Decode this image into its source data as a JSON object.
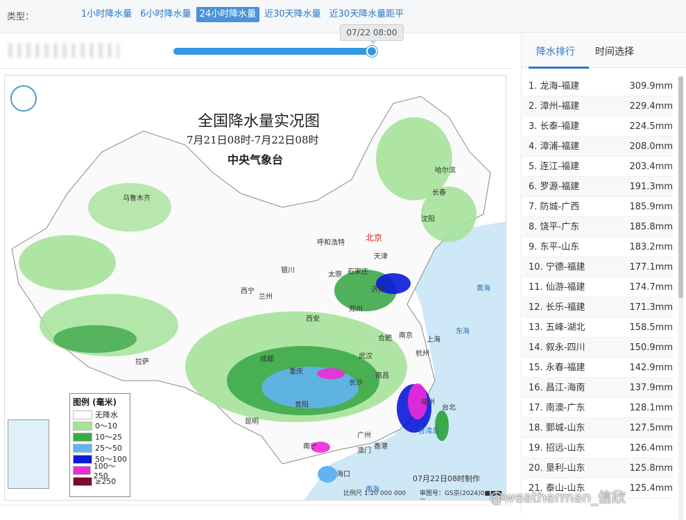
{
  "filter": {
    "label": "类型：",
    "tabs": [
      "1小时降水量",
      "6小时降水量",
      "24小时降水量",
      "近30天降水量",
      "近30天降水量距平"
    ],
    "active_index": 2
  },
  "timeline": {
    "tooltip": "07/22 08:00",
    "progress": 1.0
  },
  "map": {
    "title": "全国降水量实况图",
    "subtitle": "7月21日08时-7月22日08时",
    "organization": "中央气象台",
    "cities": [
      "乌鲁木齐",
      "哈尔滨",
      "长春",
      "沈阳",
      "北京",
      "天津",
      "呼和浩特",
      "石家庄",
      "太原",
      "银川",
      "西宁",
      "兰州",
      "郑州",
      "西安",
      "济南",
      "合肥",
      "南京",
      "上海",
      "杭州",
      "武汉",
      "成都",
      "重庆",
      "拉萨",
      "长沙",
      "南昌",
      "福州",
      "贵阳",
      "昆明",
      "南宁",
      "广州",
      "香港",
      "澳门",
      "台北",
      "海口"
    ],
    "seas": [
      "黄海",
      "东海",
      "南海",
      "台湾岛"
    ],
    "legend": {
      "title": "图例 (毫米)",
      "items": [
        {
          "label": "无降水",
          "color": "#ffffff"
        },
        {
          "label": "0～10",
          "color": "#a6e29a"
        },
        {
          "label": "10～25",
          "color": "#3da84a"
        },
        {
          "label": "25～50",
          "color": "#62b4f0"
        },
        {
          "label": "50～100",
          "color": "#0a1ad8"
        },
        {
          "label": "100～250",
          "color": "#f02ad8"
        },
        {
          "label": "≥250",
          "color": "#7a0a32"
        }
      ]
    },
    "made_at": "07月22日08时制作",
    "scale": "比例尺 1:20 000 000",
    "review": "审图号：GS京(2024)0■■■号"
  },
  "panel": {
    "tabs": [
      "降水排行",
      "时间选择"
    ],
    "active_tab": 0,
    "ranking": [
      {
        "rank": "1.",
        "place": "龙海-福建",
        "value": "309.9mm"
      },
      {
        "rank": "2.",
        "place": "漳州-福建",
        "value": "229.4mm"
      },
      {
        "rank": "3.",
        "place": "长泰-福建",
        "value": "224.5mm"
      },
      {
        "rank": "4.",
        "place": "漳浦-福建",
        "value": "208.0mm"
      },
      {
        "rank": "5.",
        "place": "连江-福建",
        "value": "203.4mm"
      },
      {
        "rank": "6.",
        "place": "罗源-福建",
        "value": "191.3mm"
      },
      {
        "rank": "7.",
        "place": "防城-广西",
        "value": "185.9mm"
      },
      {
        "rank": "8.",
        "place": "饶平-广东",
        "value": "185.8mm"
      },
      {
        "rank": "9.",
        "place": "东平-山东",
        "value": "183.2mm"
      },
      {
        "rank": "10.",
        "place": "宁德-福建",
        "value": "177.1mm"
      },
      {
        "rank": "11.",
        "place": "仙游-福建",
        "value": "174.7mm"
      },
      {
        "rank": "12.",
        "place": "长乐-福建",
        "value": "171.3mm"
      },
      {
        "rank": "13.",
        "place": "五峰-湖北",
        "value": "158.5mm"
      },
      {
        "rank": "14.",
        "place": "叙永-四川",
        "value": "150.9mm"
      },
      {
        "rank": "15.",
        "place": "永春-福建",
        "value": "142.9mm"
      },
      {
        "rank": "16.",
        "place": "昌江-海南",
        "value": "137.9mm"
      },
      {
        "rank": "17.",
        "place": "南澳-广东",
        "value": "128.1mm"
      },
      {
        "rank": "18.",
        "place": "鄄城-山东",
        "value": "127.5mm"
      },
      {
        "rank": "19.",
        "place": "招远-山东",
        "value": "126.4mm"
      },
      {
        "rank": "20.",
        "place": "垦利-山东",
        "value": "125.8mm"
      },
      {
        "rank": "21.",
        "place": "泰山-山东",
        "value": "125.4mm"
      }
    ]
  },
  "watermark": "@weatherman_信欣"
}
